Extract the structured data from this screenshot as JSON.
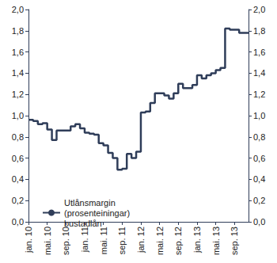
{
  "chart_data": {
    "type": "step",
    "categories": [
      "jan. 10",
      null,
      null,
      null,
      "mai. 10",
      null,
      null,
      null,
      "sep. 10",
      null,
      null,
      null,
      "jan. 11",
      null,
      null,
      null,
      "mai. 11",
      null,
      null,
      null,
      "sep. 11",
      null,
      null,
      null,
      "jan. 12",
      null,
      null,
      null,
      "mai. 12",
      null,
      null,
      null,
      "sep. 12",
      null,
      null,
      null,
      "jan. 13",
      null,
      null,
      null,
      "mai. 13",
      null,
      null,
      null,
      "sep. 13",
      null,
      null,
      null
    ],
    "series": [
      {
        "name": "Utlånsmargin (prosenteiningar) bustadlån",
        "color": "#2f3d59",
        "values": [
          0.96,
          0.95,
          0.92,
          0.93,
          0.87,
          0.77,
          0.86,
          0.86,
          0.86,
          0.9,
          0.92,
          0.88,
          0.84,
          0.83,
          0.82,
          0.74,
          0.72,
          0.65,
          0.6,
          0.49,
          0.5,
          0.64,
          0.6,
          0.66,
          1.03,
          1.04,
          1.12,
          1.21,
          1.21,
          1.19,
          1.16,
          1.21,
          1.3,
          1.26,
          1.26,
          1.29,
          1.38,
          1.35,
          1.38,
          1.4,
          1.43,
          1.45,
          1.82,
          1.81,
          1.81,
          1.78,
          1.78,
          1.78
        ]
      }
    ],
    "ylim": [
      0,
      2
    ],
    "yticks": [
      {
        "value": 0,
        "label": "0,0"
      },
      {
        "value": 0.2,
        "label": "0,2"
      },
      {
        "value": 0.4,
        "label": "0,4"
      },
      {
        "value": 0.6,
        "label": "0,6"
      },
      {
        "value": 0.8,
        "label": "0,8"
      },
      {
        "value": 1,
        "label": "1,0"
      },
      {
        "value": 1.2,
        "label": "1,2"
      },
      {
        "value": 1.4,
        "label": "1,4"
      },
      {
        "value": 1.6,
        "label": "1,6"
      },
      {
        "value": 1.8,
        "label": "1,8"
      },
      {
        "value": 2,
        "label": "2,0"
      }
    ],
    "y2lim": [
      0,
      2
    ],
    "y2ticks": [
      {
        "value": 0,
        "label": "0,0"
      },
      {
        "value": 0.2,
        "label": "0,2"
      },
      {
        "value": 0.4,
        "label": "0,4"
      },
      {
        "value": 0.6,
        "label": "0,6"
      },
      {
        "value": 0.8,
        "label": "0,8"
      },
      {
        "value": 1,
        "label": "1,0"
      },
      {
        "value": 1.2,
        "label": "1,2"
      },
      {
        "value": 1.4,
        "label": "1,4"
      },
      {
        "value": 1.6,
        "label": "1,6"
      },
      {
        "value": 1.8,
        "label": "1,8"
      },
      {
        "value": 2,
        "label": "2,0"
      }
    ],
    "grid": false,
    "legend": "lower left"
  }
}
